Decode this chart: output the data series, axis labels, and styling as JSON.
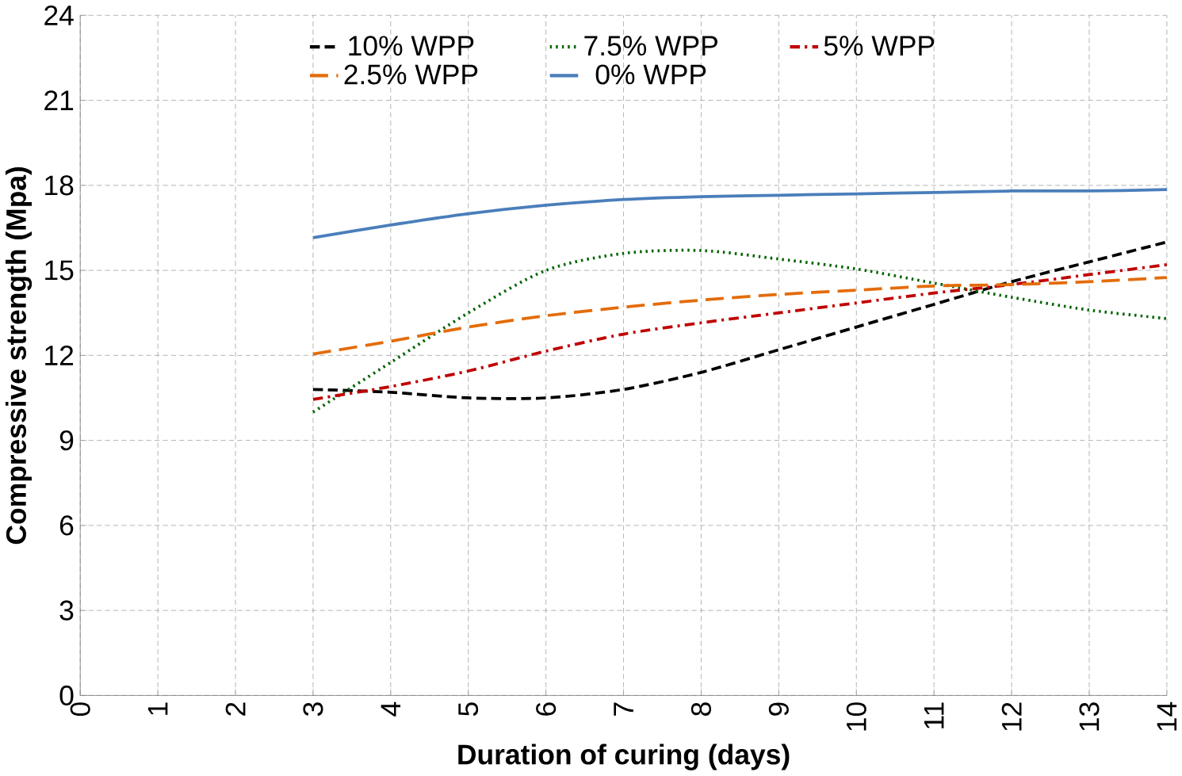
{
  "chart_data": {
    "type": "line",
    "xlabel": "Duration of curing (days)",
    "ylabel": "Compressive strength (Mpa)",
    "x": [
      3,
      4,
      5,
      6,
      7,
      8,
      9,
      10,
      11,
      12,
      13,
      14
    ],
    "xlim": [
      0,
      14
    ],
    "xticks": [
      0,
      1,
      2,
      3,
      4,
      5,
      6,
      7,
      8,
      9,
      10,
      11,
      12,
      13,
      14
    ],
    "ylim": [
      0,
      24
    ],
    "yticks": [
      0,
      3,
      6,
      9,
      12,
      15,
      18,
      21,
      24
    ],
    "grid": true,
    "legend": "top",
    "marker": "none",
    "series": [
      {
        "name": "10% WPP",
        "color": "#000000",
        "line_style": "dashed",
        "values": [
          10.8,
          10.7,
          10.5,
          10.5,
          10.8,
          11.4,
          12.2,
          13.0,
          13.8,
          14.6,
          15.3,
          16.0
        ]
      },
      {
        "name": "7.5% WPP",
        "color": "#006400",
        "line_style": "dotted",
        "values": [
          10.0,
          11.75,
          13.5,
          15.0,
          15.6,
          15.7,
          15.4,
          15.05,
          14.55,
          14.05,
          13.6,
          13.3
        ]
      },
      {
        "name": "5% WPP",
        "color": "#c00000",
        "line_style": "dashdot",
        "values": [
          10.45,
          10.9,
          11.45,
          12.15,
          12.75,
          13.15,
          13.5,
          13.85,
          14.2,
          14.5,
          14.85,
          15.2
        ]
      },
      {
        "name": "2.5% WPP",
        "color": "#e36c0a",
        "line_style": "longdash",
        "values": [
          12.05,
          12.5,
          13.0,
          13.4,
          13.7,
          13.95,
          14.15,
          14.3,
          14.45,
          14.5,
          14.6,
          14.75
        ]
      },
      {
        "name": "0% WPP",
        "color": "#4a7ebb",
        "line_style": "solid",
        "values": [
          16.15,
          16.6,
          17.0,
          17.3,
          17.5,
          17.6,
          17.65,
          17.7,
          17.75,
          17.8,
          17.8,
          17.85
        ]
      }
    ]
  }
}
